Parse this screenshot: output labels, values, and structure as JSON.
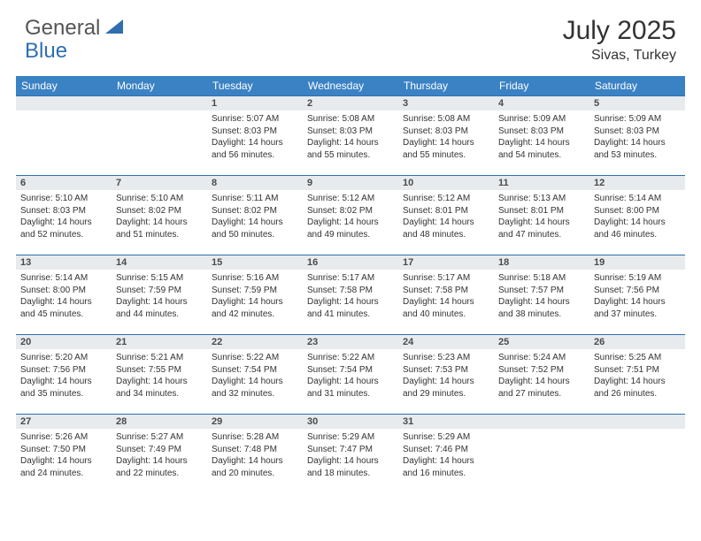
{
  "logo": {
    "part1": "General",
    "part2": "Blue"
  },
  "title": "July 2025",
  "location": "Sivas, Turkey",
  "colors": {
    "header_bg": "#3b82c4",
    "header_text": "#ffffff",
    "daynum_bg": "#e8ebee",
    "border": "#2f6fb0",
    "logo_gray": "#555555",
    "logo_blue": "#2f6fb0"
  },
  "weekdays": [
    "Sunday",
    "Monday",
    "Tuesday",
    "Wednesday",
    "Thursday",
    "Friday",
    "Saturday"
  ],
  "weeks": [
    [
      null,
      null,
      {
        "n": "1",
        "sr": "5:07 AM",
        "ss": "8:03 PM",
        "dl": "14 hours and 56 minutes."
      },
      {
        "n": "2",
        "sr": "5:08 AM",
        "ss": "8:03 PM",
        "dl": "14 hours and 55 minutes."
      },
      {
        "n": "3",
        "sr": "5:08 AM",
        "ss": "8:03 PM",
        "dl": "14 hours and 55 minutes."
      },
      {
        "n": "4",
        "sr": "5:09 AM",
        "ss": "8:03 PM",
        "dl": "14 hours and 54 minutes."
      },
      {
        "n": "5",
        "sr": "5:09 AM",
        "ss": "8:03 PM",
        "dl": "14 hours and 53 minutes."
      }
    ],
    [
      {
        "n": "6",
        "sr": "5:10 AM",
        "ss": "8:03 PM",
        "dl": "14 hours and 52 minutes."
      },
      {
        "n": "7",
        "sr": "5:10 AM",
        "ss": "8:02 PM",
        "dl": "14 hours and 51 minutes."
      },
      {
        "n": "8",
        "sr": "5:11 AM",
        "ss": "8:02 PM",
        "dl": "14 hours and 50 minutes."
      },
      {
        "n": "9",
        "sr": "5:12 AM",
        "ss": "8:02 PM",
        "dl": "14 hours and 49 minutes."
      },
      {
        "n": "10",
        "sr": "5:12 AM",
        "ss": "8:01 PM",
        "dl": "14 hours and 48 minutes."
      },
      {
        "n": "11",
        "sr": "5:13 AM",
        "ss": "8:01 PM",
        "dl": "14 hours and 47 minutes."
      },
      {
        "n": "12",
        "sr": "5:14 AM",
        "ss": "8:00 PM",
        "dl": "14 hours and 46 minutes."
      }
    ],
    [
      {
        "n": "13",
        "sr": "5:14 AM",
        "ss": "8:00 PM",
        "dl": "14 hours and 45 minutes."
      },
      {
        "n": "14",
        "sr": "5:15 AM",
        "ss": "7:59 PM",
        "dl": "14 hours and 44 minutes."
      },
      {
        "n": "15",
        "sr": "5:16 AM",
        "ss": "7:59 PM",
        "dl": "14 hours and 42 minutes."
      },
      {
        "n": "16",
        "sr": "5:17 AM",
        "ss": "7:58 PM",
        "dl": "14 hours and 41 minutes."
      },
      {
        "n": "17",
        "sr": "5:17 AM",
        "ss": "7:58 PM",
        "dl": "14 hours and 40 minutes."
      },
      {
        "n": "18",
        "sr": "5:18 AM",
        "ss": "7:57 PM",
        "dl": "14 hours and 38 minutes."
      },
      {
        "n": "19",
        "sr": "5:19 AM",
        "ss": "7:56 PM",
        "dl": "14 hours and 37 minutes."
      }
    ],
    [
      {
        "n": "20",
        "sr": "5:20 AM",
        "ss": "7:56 PM",
        "dl": "14 hours and 35 minutes."
      },
      {
        "n": "21",
        "sr": "5:21 AM",
        "ss": "7:55 PM",
        "dl": "14 hours and 34 minutes."
      },
      {
        "n": "22",
        "sr": "5:22 AM",
        "ss": "7:54 PM",
        "dl": "14 hours and 32 minutes."
      },
      {
        "n": "23",
        "sr": "5:22 AM",
        "ss": "7:54 PM",
        "dl": "14 hours and 31 minutes."
      },
      {
        "n": "24",
        "sr": "5:23 AM",
        "ss": "7:53 PM",
        "dl": "14 hours and 29 minutes."
      },
      {
        "n": "25",
        "sr": "5:24 AM",
        "ss": "7:52 PM",
        "dl": "14 hours and 27 minutes."
      },
      {
        "n": "26",
        "sr": "5:25 AM",
        "ss": "7:51 PM",
        "dl": "14 hours and 26 minutes."
      }
    ],
    [
      {
        "n": "27",
        "sr": "5:26 AM",
        "ss": "7:50 PM",
        "dl": "14 hours and 24 minutes."
      },
      {
        "n": "28",
        "sr": "5:27 AM",
        "ss": "7:49 PM",
        "dl": "14 hours and 22 minutes."
      },
      {
        "n": "29",
        "sr": "5:28 AM",
        "ss": "7:48 PM",
        "dl": "14 hours and 20 minutes."
      },
      {
        "n": "30",
        "sr": "5:29 AM",
        "ss": "7:47 PM",
        "dl": "14 hours and 18 minutes."
      },
      {
        "n": "31",
        "sr": "5:29 AM",
        "ss": "7:46 PM",
        "dl": "14 hours and 16 minutes."
      },
      null,
      null
    ]
  ],
  "labels": {
    "sunrise": "Sunrise:",
    "sunset": "Sunset:",
    "daylight": "Daylight:"
  }
}
